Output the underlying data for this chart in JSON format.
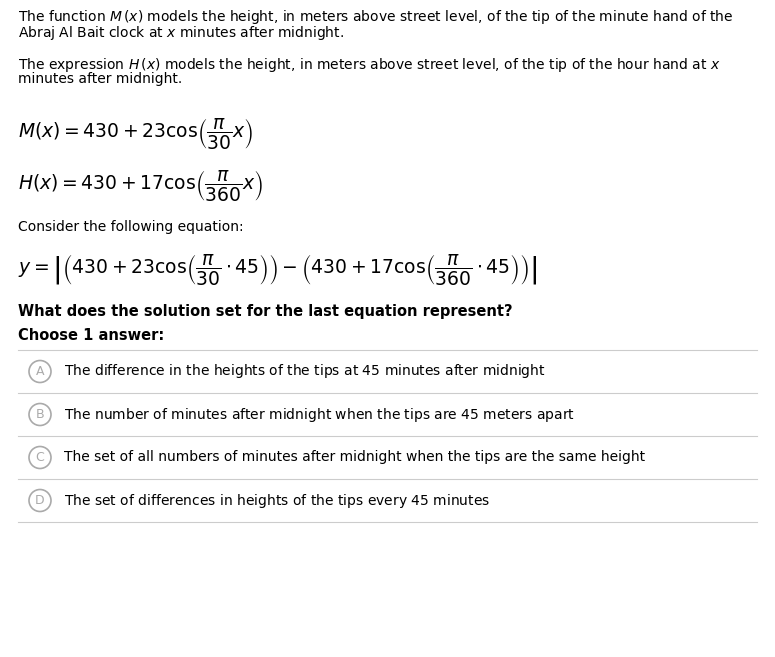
{
  "bg_color": "#ffffff",
  "text_color": "#000000",
  "line_color": "#cccccc",
  "circle_color": "#aaaaaa",
  "fs_body": 10.0,
  "fs_math_large": 13.5,
  "fs_bold": 10.5,
  "fs_option": 10.0,
  "fs_circle_label": 9.0,
  "para1_l1": "The function $M\\,(x)$ models the height, in meters above street level, of the tip of the minute hand of the",
  "para1_l2": "Abraj Al Bait clock at $x$ minutes after midnight.",
  "para2_l1": "The expression $H\\,(x)$ models the height, in meters above street level, of the tip of the hour hand at $x$",
  "para2_l2": "minutes after midnight.",
  "eq_M": "$M(x) = 430 + 23\\cos\\!\\left(\\dfrac{\\pi}{30}x\\right)$",
  "eq_H": "$H(x) = 430 + 17\\cos\\!\\left(\\dfrac{\\pi}{360}x\\right)$",
  "consider": "Consider the following equation:",
  "eq_y": "$y = \\left|\\left(430 + 23\\cos\\!\\left(\\dfrac{\\pi}{30}\\cdot 45\\right)\\right) - \\left(430 + 17\\cos\\!\\left(\\dfrac{\\pi}{360}\\cdot 45\\right)\\right)\\right|$",
  "question": "What does the solution set for the last equation represent?",
  "choose": "Choose 1 answer:",
  "opt_labels": [
    "A",
    "B",
    "C",
    "D"
  ],
  "opt_texts": [
    "The difference in the heights of the tips at $45$ minutes after midnight",
    "The number of minutes after midnight when the tips are $45$ meters apart",
    "The set of all numbers of minutes after midnight when the tips are the same height",
    "The set of differences in heights of the tips every $45$ minutes"
  ]
}
